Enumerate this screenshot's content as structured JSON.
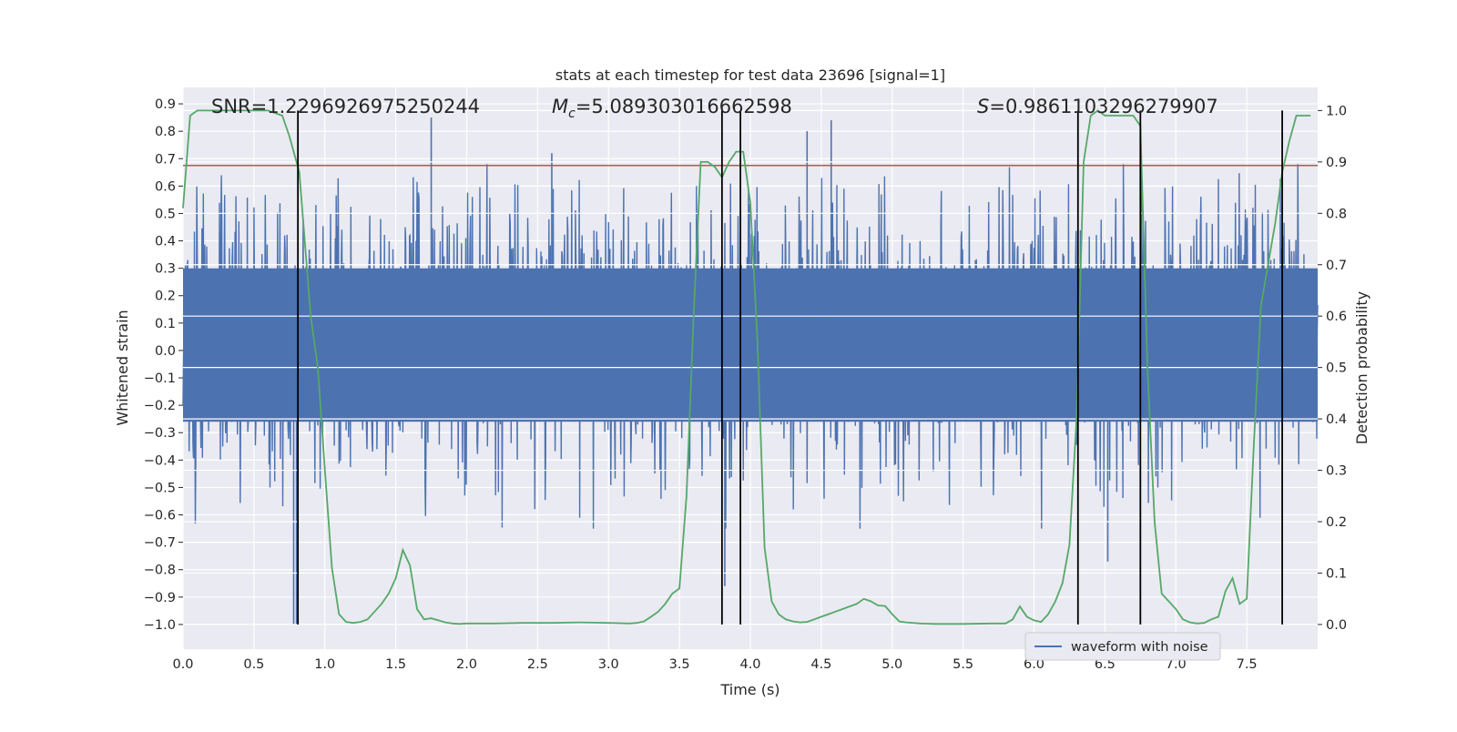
{
  "chart_data": {
    "type": "line",
    "title": "stats at each timestep for test data 23696 [signal=1]",
    "xlabel": "Time (s)",
    "ylabel_left": "Whitened strain",
    "ylabel_right": "Detection probability",
    "xlim": [
      0.0,
      8.0
    ],
    "ylim_left": [
      -1.09,
      0.96
    ],
    "ylim_right": [
      -0.048,
      1.045
    ],
    "x_ticks": [
      "0.0",
      "0.5",
      "1.0",
      "1.5",
      "2.0",
      "2.5",
      "3.0",
      "3.5",
      "4.0",
      "4.5",
      "5.0",
      "5.5",
      "6.0",
      "6.5",
      "7.0",
      "7.5"
    ],
    "y_left_ticks": [
      "0.9",
      "0.8",
      "0.7",
      "0.6",
      "0.5",
      "0.4",
      "0.3",
      "0.2",
      "0.1",
      "0.0",
      "−0.1",
      "−0.2",
      "−0.3",
      "−0.4",
      "−0.5",
      "−0.6",
      "−0.7",
      "−0.8",
      "−0.9",
      "−1.0"
    ],
    "y_right_ticks": [
      "1.0",
      "0.9",
      "0.8",
      "0.7",
      "0.6",
      "0.5",
      "0.4",
      "0.3",
      "0.2",
      "0.1",
      "0.0"
    ],
    "grid": true,
    "legend_position": "lower-right",
    "annotations": {
      "snr": "SNR=1.2296926975250244",
      "mc_symbol": "M",
      "mc_sub": "c",
      "mc_value": "=5.089303016662598",
      "s_symbol": "S",
      "s_value": "=0.9861103296279907"
    },
    "series": [
      {
        "name": "waveform with noise",
        "axis": "left",
        "color": "#4c72b0",
        "kind": "noisy waveform",
        "envelope_typical": [
          -0.45,
          0.55
        ],
        "notable_spikes": [
          {
            "x": 0.78,
            "y": -1.0
          },
          {
            "x": 0.8,
            "y": -1.0
          },
          {
            "x": 1.75,
            "y": 0.85
          },
          {
            "x": 2.6,
            "y": 0.72
          },
          {
            "x": 3.82,
            "y": -0.86
          },
          {
            "x": 4.4,
            "y": 0.8
          },
          {
            "x": 4.57,
            "y": 0.84
          },
          {
            "x": 6.52,
            "y": -0.77
          }
        ]
      },
      {
        "axis": "right",
        "color": "#55a868",
        "kind": "detection probability",
        "x": [
          0.0,
          0.05,
          0.1,
          0.2,
          0.3,
          0.4,
          0.5,
          0.6,
          0.7,
          0.75,
          0.82,
          0.9,
          0.95,
          1.0,
          1.05,
          1.1,
          1.15,
          1.2,
          1.25,
          1.3,
          1.35,
          1.4,
          1.45,
          1.5,
          1.55,
          1.6,
          1.65,
          1.7,
          1.75,
          1.8,
          1.85,
          1.9,
          1.95,
          2.0,
          2.2,
          2.4,
          2.6,
          2.8,
          3.0,
          3.15,
          3.2,
          3.25,
          3.3,
          3.35,
          3.4,
          3.45,
          3.5,
          3.55,
          3.6,
          3.65,
          3.7,
          3.75,
          3.8,
          3.85,
          3.9,
          3.95,
          4.0,
          4.05,
          4.1,
          4.15,
          4.2,
          4.25,
          4.3,
          4.35,
          4.4,
          4.45,
          4.5,
          4.55,
          4.6,
          4.65,
          4.7,
          4.75,
          4.8,
          4.85,
          4.9,
          4.95,
          5.0,
          5.05,
          5.1,
          5.2,
          5.3,
          5.5,
          5.7,
          5.8,
          5.85,
          5.9,
          5.95,
          6.0,
          6.05,
          6.1,
          6.15,
          6.2,
          6.25,
          6.3,
          6.35,
          6.4,
          6.45,
          6.5,
          6.6,
          6.7,
          6.75,
          6.8,
          6.85,
          6.9,
          6.95,
          7.0,
          7.05,
          7.1,
          7.15,
          7.2,
          7.25,
          7.3,
          7.35,
          7.4,
          7.45,
          7.5,
          7.55,
          7.6,
          7.65,
          7.7,
          7.75,
          7.8,
          7.85,
          7.9,
          7.95
        ],
        "y": [
          0.81,
          0.99,
          1.0,
          1.0,
          1.0,
          1.0,
          1.0,
          1.0,
          0.99,
          0.95,
          0.88,
          0.6,
          0.5,
          0.3,
          0.11,
          0.02,
          0.005,
          0.003,
          0.005,
          0.01,
          0.025,
          0.04,
          0.06,
          0.09,
          0.145,
          0.115,
          0.03,
          0.01,
          0.012,
          0.008,
          0.004,
          0.002,
          0.001,
          0.002,
          0.002,
          0.003,
          0.003,
          0.004,
          0.003,
          0.002,
          0.003,
          0.006,
          0.015,
          0.025,
          0.04,
          0.06,
          0.07,
          0.25,
          0.6,
          0.9,
          0.9,
          0.89,
          0.87,
          0.9,
          0.92,
          0.92,
          0.82,
          0.55,
          0.15,
          0.045,
          0.02,
          0.01,
          0.006,
          0.004,
          0.005,
          0.01,
          0.015,
          0.02,
          0.025,
          0.03,
          0.035,
          0.04,
          0.05,
          0.045,
          0.037,
          0.036,
          0.02,
          0.006,
          0.004,
          0.002,
          0.001,
          0.001,
          0.002,
          0.002,
          0.01,
          0.035,
          0.015,
          0.008,
          0.005,
          0.02,
          0.045,
          0.08,
          0.155,
          0.4,
          0.9,
          0.99,
          1.0,
          0.99,
          0.99,
          0.99,
          0.97,
          0.5,
          0.2,
          0.06,
          0.045,
          0.03,
          0.01,
          0.004,
          0.002,
          0.003,
          0.01,
          0.015,
          0.065,
          0.09,
          0.04,
          0.05,
          0.35,
          0.62,
          0.7,
          0.78,
          0.88,
          0.94,
          0.99,
          0.99,
          0.99
        ]
      }
    ],
    "horizontal_lines": [
      {
        "y": 0.675,
        "axis": "left",
        "color": "#c44e52"
      }
    ],
    "vertical_lines": [
      0.81,
      3.8,
      3.93,
      6.31,
      6.75,
      7.75
    ]
  }
}
